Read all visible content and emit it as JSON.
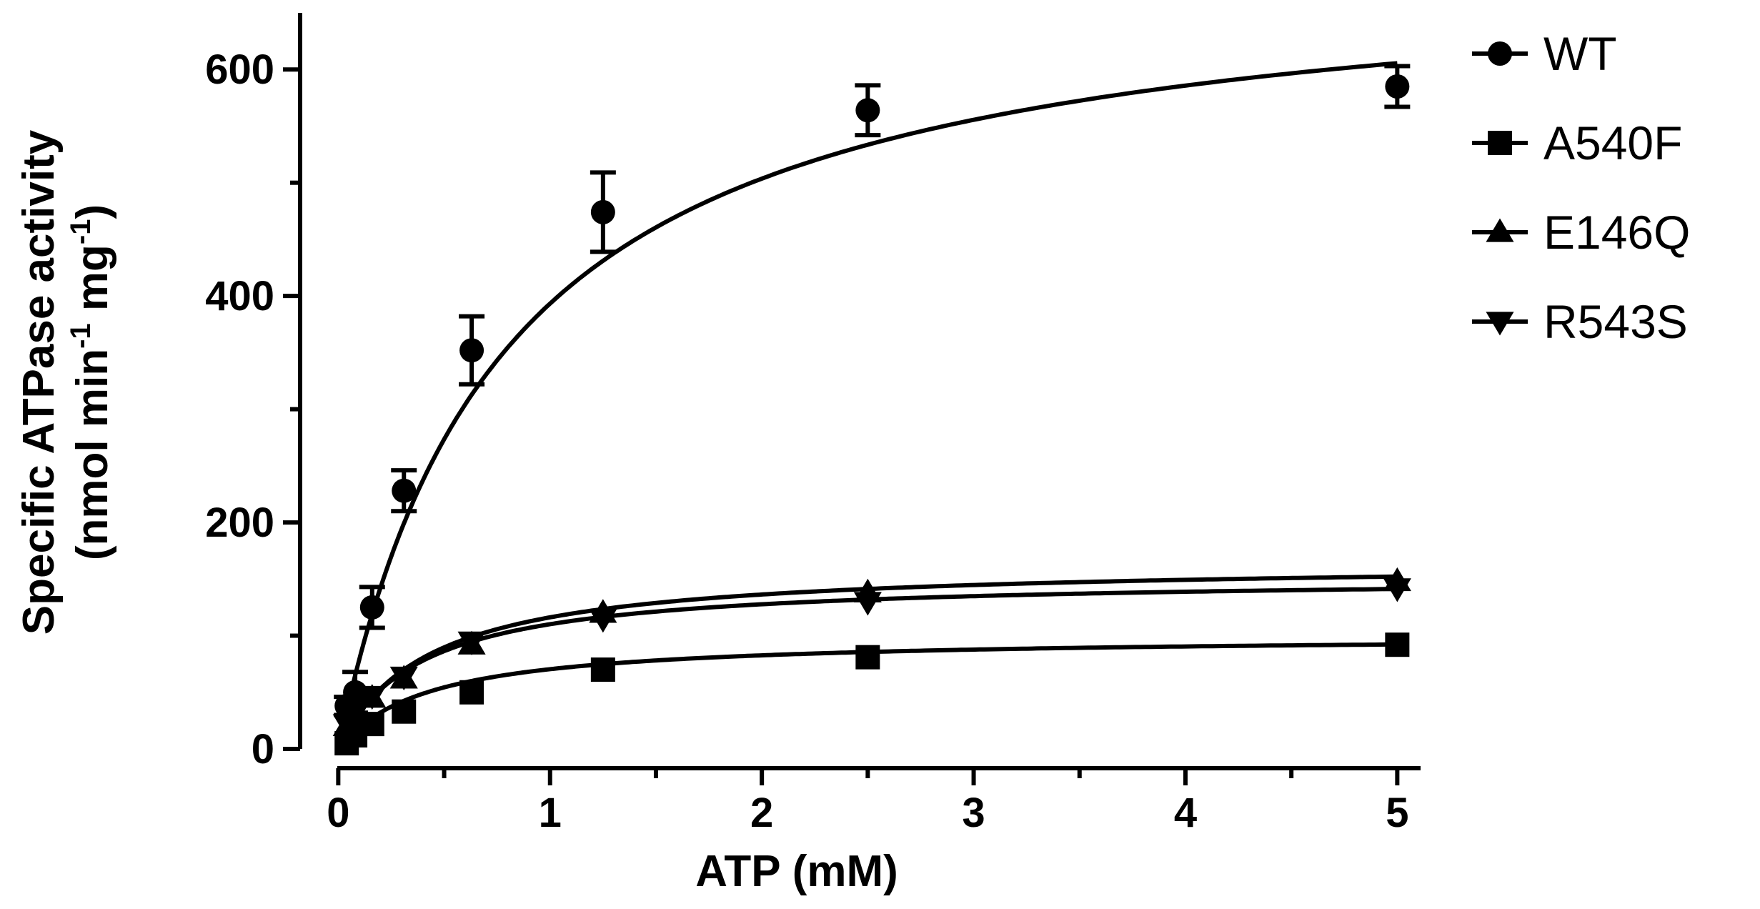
{
  "chart_data": {
    "type": "scatter",
    "title": "",
    "xlabel": "ATP (mM)",
    "ylabel_line1": "Specific ATPase activity",
    "ylabel_line2": {
      "prefix": "(nmol min",
      "sup1": "-1",
      "middle": " mg",
      "sup2": "-1",
      "suffix": ")"
    },
    "xlim": [
      -0.18,
      5.1
    ],
    "ylim": [
      0,
      650
    ],
    "x_ticks": [
      0,
      1,
      2,
      3,
      4,
      5
    ],
    "x_tick_labels": [
      "0",
      "1",
      "2",
      "3",
      "4",
      "5"
    ],
    "x_minor_ticks": [
      0.5,
      1.5,
      2.5,
      3.5,
      4.5
    ],
    "y_ticks": [
      0,
      200,
      400,
      600
    ],
    "y_tick_labels": [
      "0",
      "200",
      "400",
      "600"
    ],
    "y_minor_ticks": [
      100,
      300,
      500
    ],
    "grid": false,
    "legend_position": "top-right",
    "fit_curve": "Michaelis-Menten",
    "series": [
      {
        "name": "WT",
        "marker": "circle",
        "x": [
          0.04,
          0.08,
          0.16,
          0.31,
          0.63,
          1.25,
          2.5,
          5.0
        ],
        "y": [
          38,
          50,
          125,
          228,
          352,
          474,
          564,
          585
        ],
        "err": [
          8,
          18,
          18,
          18,
          30,
          35,
          22,
          18
        ],
        "fit": {
          "vmax": 700,
          "km": 0.78
        }
      },
      {
        "name": "A540F",
        "marker": "square",
        "x": [
          0.04,
          0.08,
          0.16,
          0.31,
          0.63,
          1.25,
          2.5,
          5.0
        ],
        "y": [
          5,
          12,
          22,
          33,
          50,
          70,
          81,
          92
        ],
        "err": [
          0,
          0,
          0,
          0,
          0,
          0,
          0,
          0
        ],
        "fit": {
          "vmax": 100,
          "km": 0.42
        }
      },
      {
        "name": "E146Q",
        "marker": "triangle-up",
        "x": [
          0.04,
          0.08,
          0.16,
          0.31,
          0.63,
          1.25,
          2.5,
          5.0
        ],
        "y": [
          20,
          30,
          45,
          62,
          92,
          120,
          138,
          148
        ],
        "err": [
          0,
          0,
          0,
          0,
          0,
          0,
          0,
          0
        ],
        "fit": {
          "vmax": 165,
          "km": 0.42
        }
      },
      {
        "name": "R543S",
        "marker": "triangle-down",
        "x": [
          0.04,
          0.08,
          0.16,
          0.31,
          0.63,
          1.25,
          2.5,
          5.0
        ],
        "y": [
          22,
          32,
          47,
          64,
          95,
          115,
          130,
          142
        ],
        "err": [
          0,
          0,
          0,
          0,
          0,
          0,
          0,
          0
        ],
        "fit": {
          "vmax": 152,
          "km": 0.38
        }
      }
    ]
  }
}
